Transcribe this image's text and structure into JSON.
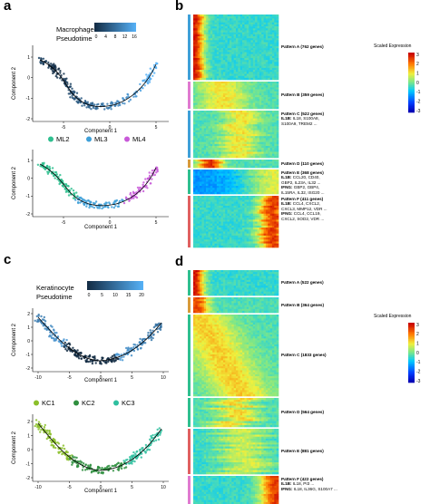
{
  "panels": {
    "a": "a",
    "b": "b",
    "c": "c",
    "d": "d"
  },
  "a_top": {
    "legend_title_1": "Macrophage",
    "legend_title_2": "Pseudotime",
    "colorbar_ticks": [
      "0",
      "4",
      "8",
      "12",
      "16"
    ],
    "x_ticks": [
      "-5",
      "0",
      "5"
    ],
    "y_ticks": [
      "1",
      "0",
      "-1",
      "-2"
    ],
    "xlabel": "Component 1",
    "ylabel": "Component 2"
  },
  "a_bottom": {
    "legend": [
      {
        "name": "ML2",
        "color": "#2fbf8f"
      },
      {
        "name": "ML3",
        "color": "#3fa0d8"
      },
      {
        "name": "ML4",
        "color": "#c85ad8"
      }
    ],
    "x_ticks": [
      "-5",
      "0",
      "5"
    ],
    "y_ticks": [
      "1",
      "0",
      "-1",
      "-2"
    ],
    "xlabel": "Component 1",
    "ylabel": "Component 2"
  },
  "c_top": {
    "legend_title_1": "Keratinocyte",
    "legend_title_2": "Pseudotime",
    "colorbar_ticks": [
      "0",
      "5",
      "10",
      "15",
      "20"
    ],
    "x_ticks": [
      "-10",
      "-5",
      "0",
      "5",
      "10"
    ],
    "y_ticks": [
      "2",
      "1",
      "0",
      "-1",
      "-2"
    ],
    "xlabel": "Component 1",
    "ylabel": "Component 2"
  },
  "c_bottom": {
    "legend": [
      {
        "name": "KC1",
        "color": "#8bbf2a"
      },
      {
        "name": "KC2",
        "color": "#2f8f3f"
      },
      {
        "name": "KC3",
        "color": "#2fbf9f"
      }
    ],
    "x_ticks": [
      "-10",
      "-5",
      "0",
      "5",
      "10"
    ],
    "y_ticks": [
      "2",
      "1",
      "0",
      "-1",
      "-2"
    ],
    "xlabel": "Component 1",
    "ylabel": "Component 2"
  },
  "b": {
    "scale_title": "Scaled Expression",
    "scale_ticks": [
      "3",
      "2",
      "1",
      "0",
      "-1",
      "-2",
      "-3"
    ],
    "patterns": [
      {
        "title": "Pattern A (762 genes)",
        "lines": []
      },
      {
        "title": "Pattern B (359 genes)",
        "lines": []
      },
      {
        "title": "Pattern C (522 genes)",
        "lines": [
          [
            "IL1B:",
            " IL18, S100A8,"
          ],
          [
            "",
            "S100A9, TREM2 ..."
          ]
        ]
      },
      {
        "title": "Pattern D (110 genes)",
        "lines": []
      },
      {
        "title": "Pattern E (368 genes)",
        "lines": [
          [
            "IL1B:",
            " CCL20, CD40,"
          ],
          [
            "",
            "GBP2, IL23A, IL32 ..."
          ],
          [
            "IFNG:",
            " GBP2, GBP4,"
          ],
          [
            "",
            "IL15RA, IL32, ISG20 ..."
          ]
        ]
      },
      {
        "title": "Pattern F (411 genes)",
        "lines": [
          [
            "IL1B:",
            " CCL4, CXCL2,"
          ],
          [
            "",
            "CXCL3, MMP12, VDR ..."
          ],
          [
            "IFNG:",
            " CCL4, CCL19,"
          ],
          [
            "",
            "CXCL2, SOD2, VDR ..."
          ]
        ]
      }
    ],
    "side_colors": [
      "#3fa0d8",
      "#e07ad0",
      "#3fa0d8",
      "#d89a3a",
      "#2fbf8f",
      "#e06060"
    ]
  },
  "d": {
    "scale_title": "Scaled Expression",
    "scale_ticks": [
      "3",
      "2",
      "1",
      "0",
      "-1",
      "-2",
      "-3"
    ],
    "patterns": [
      {
        "title": "Pattern A (522 genes)",
        "lines": []
      },
      {
        "title": "Pattern B (364 genes)",
        "lines": []
      },
      {
        "title": "Pattern C (1833 genes)",
        "lines": []
      },
      {
        "title": "Pattern D (564 genes)",
        "lines": []
      },
      {
        "title": "Pattern E (881 genes)",
        "lines": []
      },
      {
        "title": "Pattern F (422 genes)",
        "lines": [
          [
            "IL1B:",
            " IL18, PI3 ..."
          ],
          [
            "IFNG:",
            " IL18, IL36G, S100A7 ..."
          ]
        ]
      }
    ],
    "side_colors": [
      "#2fbf8f",
      "#d89a3a",
      "#2fbf8f",
      "#2fbf8f",
      "#e06060",
      "#e07ad0"
    ]
  }
}
